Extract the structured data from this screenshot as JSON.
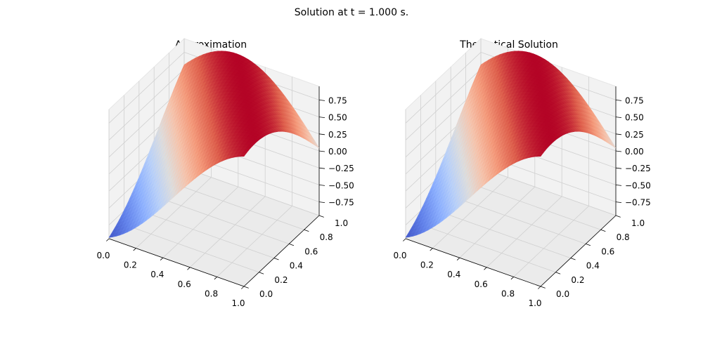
{
  "suptitle": "Solution at t = 1.000 s.",
  "chart_data": [
    {
      "type": "surface",
      "title": "Approximation",
      "colormap": "coolwarm",
      "xlim": [
        0.0,
        1.0
      ],
      "ylim": [
        0.0,
        1.0
      ],
      "zlim": [
        -0.95,
        0.95
      ],
      "x_ticks": [
        "0.0",
        "0.2",
        "0.4",
        "0.6",
        "0.8",
        "1.0"
      ],
      "y_ticks": [
        "0.0",
        "0.2",
        "0.4",
        "0.6",
        "0.8",
        "1.0"
      ],
      "z_ticks": [
        "−0.75",
        "−0.50",
        "−0.25",
        "0.00",
        "0.25",
        "0.50",
        "0.75"
      ],
      "grid": true,
      "surface": "u(x, y, t) = sin(2.5·x + 1.8·y − 1.2), t = 1.000",
      "z_range": [
        -1.0,
        1.0
      ]
    },
    {
      "type": "surface",
      "title": "Theoretical Solution",
      "colormap": "coolwarm",
      "xlim": [
        0.0,
        1.0
      ],
      "ylim": [
        0.0,
        1.0
      ],
      "zlim": [
        -0.95,
        0.95
      ],
      "x_ticks": [
        "0.0",
        "0.2",
        "0.4",
        "0.6",
        "0.8",
        "1.0"
      ],
      "y_ticks": [
        "0.0",
        "0.2",
        "0.4",
        "0.6",
        "0.8",
        "1.0"
      ],
      "z_ticks": [
        "−0.75",
        "−0.50",
        "−0.25",
        "0.00",
        "0.25",
        "0.50",
        "0.75"
      ],
      "grid": true,
      "surface": "u(x, y, t) = sin(2.5·x + 1.8·y − 1.2), t = 1.000",
      "z_range": [
        -1.0,
        1.0
      ]
    }
  ]
}
